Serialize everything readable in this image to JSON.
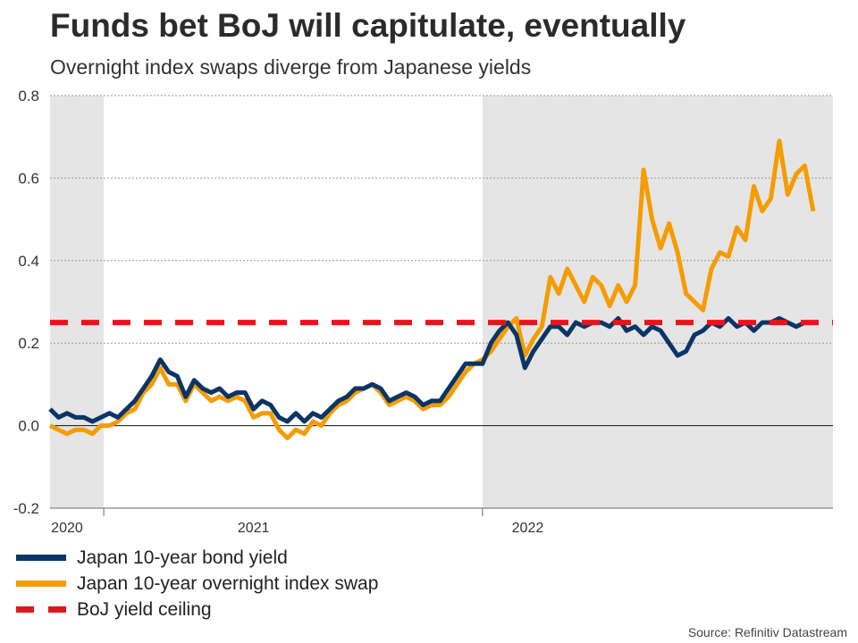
{
  "chart_data": {
    "type": "line",
    "title": "Funds bet BoJ will capitulate, eventually",
    "subtitle": "Overnight index swaps diverge from Japanese yields",
    "ylim": [
      -0.2,
      0.8
    ],
    "yticks": [
      "0.8",
      "0.6",
      "0.4",
      "0.2",
      "0.0",
      "-0.2"
    ],
    "ytick_values": [
      0.8,
      0.6,
      0.4,
      0.2,
      0.0,
      -0.2
    ],
    "xlim": [
      2019.93,
      2022.7
    ],
    "xtick_labels": [
      "2020",
      "2021",
      "2022"
    ],
    "xtick_label_pos": [
      2019.99,
      2020.65,
      2021.62
    ],
    "xtick_marks": [
      2020.12,
      2021.46
    ],
    "shaded_ranges": [
      [
        2019.93,
        2020.12
      ],
      [
        2021.46,
        2022.7
      ]
    ],
    "series": [
      {
        "name": "Japan 10-year bond yield",
        "color": "#0b3566",
        "x": [
          2019.93,
          2019.96,
          2019.99,
          2020.02,
          2020.05,
          2020.08,
          2020.11,
          2020.14,
          2020.17,
          2020.2,
          2020.23,
          2020.26,
          2020.29,
          2020.32,
          2020.35,
          2020.38,
          2020.41,
          2020.44,
          2020.47,
          2020.5,
          2020.53,
          2020.56,
          2020.59,
          2020.62,
          2020.65,
          2020.68,
          2020.71,
          2020.74,
          2020.77,
          2020.8,
          2020.83,
          2020.86,
          2020.89,
          2020.92,
          2020.95,
          2020.98,
          2021.01,
          2021.04,
          2021.07,
          2021.1,
          2021.13,
          2021.16,
          2021.19,
          2021.22,
          2021.25,
          2021.28,
          2021.31,
          2021.34,
          2021.37,
          2021.4,
          2021.43,
          2021.46,
          2021.49,
          2021.52,
          2021.55,
          2021.58,
          2021.61,
          2021.64,
          2021.67,
          2021.7,
          2021.73,
          2021.76,
          2021.79,
          2021.82,
          2021.85,
          2021.88,
          2021.91,
          2021.94,
          2021.97,
          2022.0,
          2022.03,
          2022.06,
          2022.09,
          2022.12,
          2022.15,
          2022.18,
          2022.21,
          2022.24,
          2022.27,
          2022.3,
          2022.33,
          2022.36,
          2022.39,
          2022.42,
          2022.45,
          2022.48,
          2022.51,
          2022.54,
          2022.57,
          2022.6,
          2022.63
        ],
        "values": [
          0.04,
          0.02,
          0.03,
          0.02,
          0.02,
          0.01,
          0.02,
          0.03,
          0.02,
          0.04,
          0.06,
          0.09,
          0.12,
          0.16,
          0.13,
          0.12,
          0.07,
          0.11,
          0.09,
          0.08,
          0.09,
          0.07,
          0.08,
          0.08,
          0.04,
          0.06,
          0.05,
          0.02,
          0.01,
          0.03,
          0.01,
          0.03,
          0.02,
          0.04,
          0.06,
          0.07,
          0.09,
          0.09,
          0.1,
          0.09,
          0.06,
          0.07,
          0.08,
          0.07,
          0.05,
          0.06,
          0.06,
          0.09,
          0.12,
          0.15,
          0.15,
          0.15,
          0.2,
          0.23,
          0.25,
          0.22,
          0.14,
          0.18,
          0.21,
          0.24,
          0.24,
          0.22,
          0.25,
          0.24,
          0.25,
          0.25,
          0.24,
          0.26,
          0.23,
          0.24,
          0.22,
          0.24,
          0.23,
          0.2,
          0.17,
          0.18,
          0.22,
          0.23,
          0.25,
          0.24,
          0.26,
          0.24,
          0.25,
          0.23,
          0.25,
          0.25,
          0.26,
          0.25,
          0.24,
          0.25,
          0.25
        ]
      },
      {
        "name": "Japan 10-year overnight index swap",
        "color": "#f59c00",
        "x": [
          2019.93,
          2019.96,
          2019.99,
          2020.02,
          2020.05,
          2020.08,
          2020.11,
          2020.14,
          2020.17,
          2020.2,
          2020.23,
          2020.26,
          2020.29,
          2020.32,
          2020.35,
          2020.38,
          2020.41,
          2020.44,
          2020.47,
          2020.5,
          2020.53,
          2020.56,
          2020.59,
          2020.62,
          2020.65,
          2020.68,
          2020.71,
          2020.74,
          2020.77,
          2020.8,
          2020.83,
          2020.86,
          2020.89,
          2020.92,
          2020.95,
          2020.98,
          2021.01,
          2021.04,
          2021.07,
          2021.1,
          2021.13,
          2021.16,
          2021.19,
          2021.22,
          2021.25,
          2021.28,
          2021.31,
          2021.34,
          2021.37,
          2021.4,
          2021.43,
          2021.46,
          2021.49,
          2021.52,
          2021.55,
          2021.58,
          2021.61,
          2021.64,
          2021.67,
          2021.7,
          2021.73,
          2021.76,
          2021.79,
          2021.82,
          2021.85,
          2021.88,
          2021.91,
          2021.94,
          2021.97,
          2022.0,
          2022.03,
          2022.06,
          2022.09,
          2022.12,
          2022.15,
          2022.18,
          2022.21,
          2022.24,
          2022.27,
          2022.3,
          2022.33,
          2022.36,
          2022.39,
          2022.42,
          2022.45,
          2022.48,
          2022.51,
          2022.54,
          2022.57,
          2022.6,
          2022.63
        ],
        "values": [
          0.0,
          -0.01,
          -0.02,
          -0.01,
          -0.01,
          -0.02,
          0.0,
          0.0,
          0.01,
          0.03,
          0.04,
          0.08,
          0.1,
          0.14,
          0.1,
          0.1,
          0.06,
          0.1,
          0.08,
          0.06,
          0.07,
          0.06,
          0.07,
          0.06,
          0.02,
          0.03,
          0.03,
          -0.01,
          -0.03,
          -0.01,
          -0.02,
          0.01,
          0.0,
          0.03,
          0.05,
          0.06,
          0.08,
          0.09,
          0.1,
          0.08,
          0.05,
          0.06,
          0.07,
          0.06,
          0.04,
          0.05,
          0.05,
          0.07,
          0.1,
          0.13,
          0.15,
          0.16,
          0.18,
          0.21,
          0.24,
          0.26,
          0.17,
          0.21,
          0.24,
          0.36,
          0.32,
          0.38,
          0.34,
          0.3,
          0.36,
          0.34,
          0.29,
          0.34,
          0.3,
          0.34,
          0.62,
          0.5,
          0.43,
          0.49,
          0.42,
          0.32,
          0.3,
          0.28,
          0.38,
          0.42,
          0.41,
          0.48,
          0.45,
          0.58,
          0.52,
          0.55,
          0.69,
          0.56,
          0.61,
          0.63,
          0.52
        ]
      },
      {
        "name": "BoJ yield ceiling",
        "color": "#e8141c",
        "style": "dashed",
        "x": [
          2019.93,
          2022.7
        ],
        "values": [
          0.25,
          0.25
        ]
      }
    ]
  },
  "legend": {
    "items": [
      {
        "label": "Japan 10-year bond yield",
        "color": "#0b3566"
      },
      {
        "label": "Japan 10-year overnight index swap",
        "color": "#f59c00"
      },
      {
        "label": "BoJ yield ceiling",
        "color": "#e8141c"
      }
    ]
  },
  "source": "Source: Refinitiv Datastream"
}
